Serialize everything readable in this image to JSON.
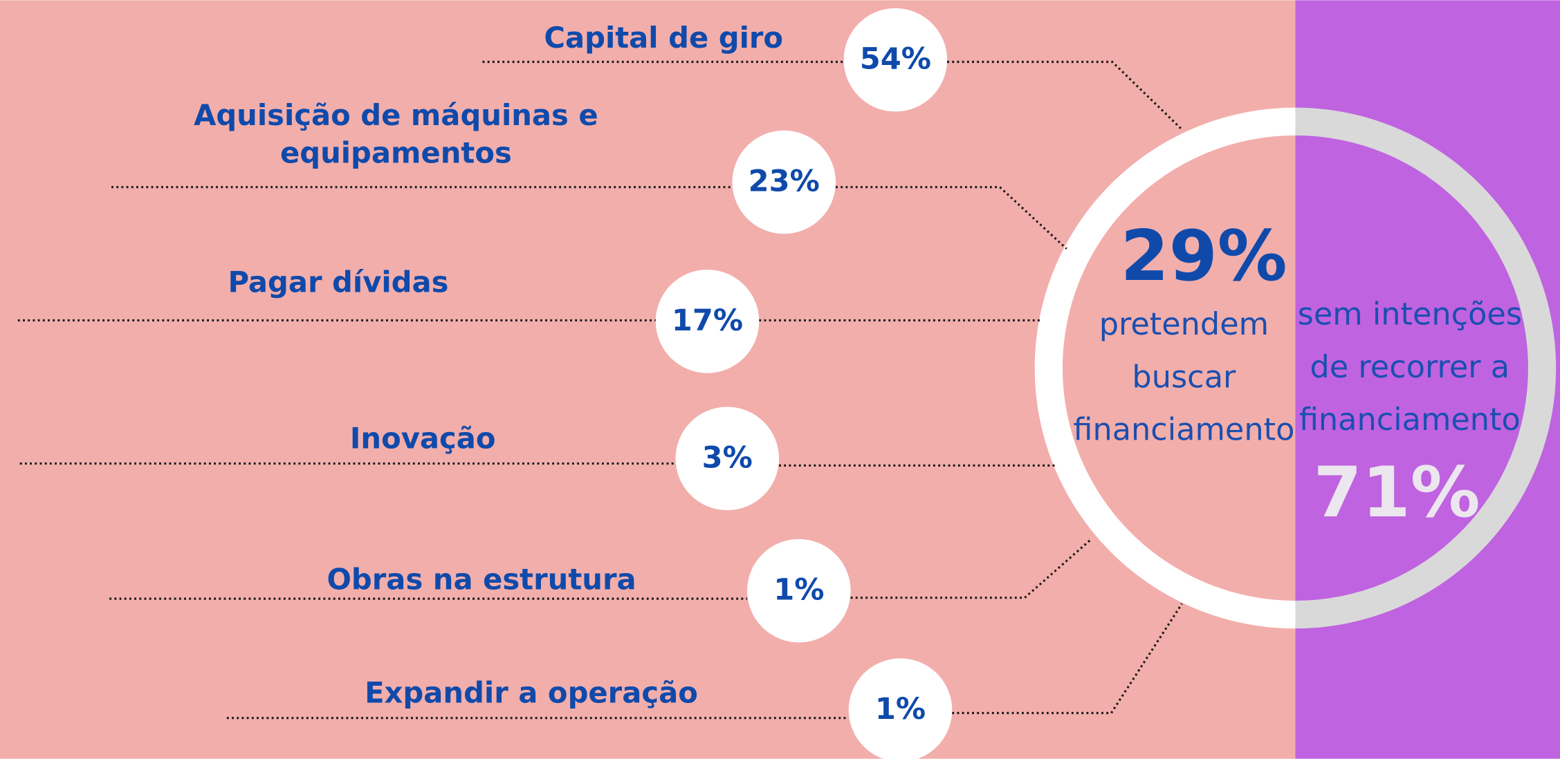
{
  "items": [
    {
      "lines": [
        "Capital de giro"
      ],
      "value": "54%"
    },
    {
      "lines": [
        "Aquisição de máquinas e",
        "equipamentos"
      ],
      "value": "23%"
    },
    {
      "lines": [
        "Pagar dívidas"
      ],
      "value": "17%"
    },
    {
      "lines": [
        "Inovação"
      ],
      "value": "3%"
    },
    {
      "lines": [
        "Obras na estrutura"
      ],
      "value": "1%"
    },
    {
      "lines": [
        "Expandir a operação"
      ],
      "value": "1%"
    }
  ],
  "left": {
    "value": "29%",
    "lines": [
      "pretendem",
      "buscar",
      "financiamento"
    ]
  },
  "right": {
    "value": "71%",
    "lines": [
      "sem intenções",
      "de recorrer a",
      "financiamento"
    ]
  }
}
